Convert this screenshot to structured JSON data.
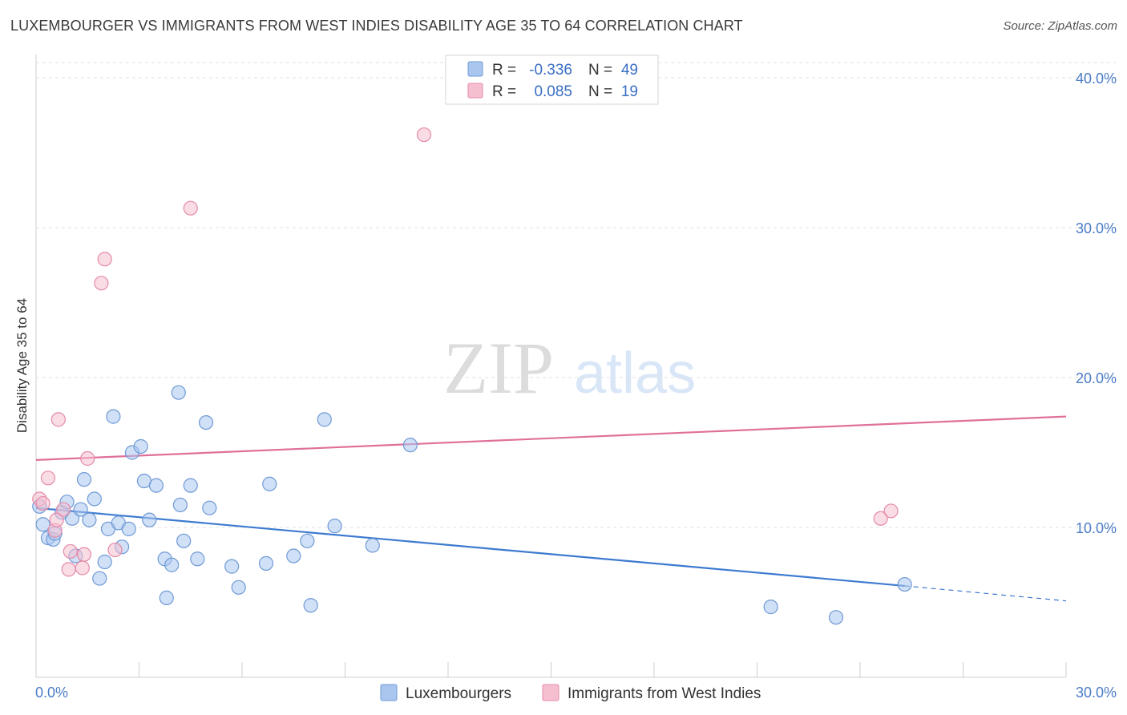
{
  "chart_data": {
    "type": "scatter",
    "title": "LUXEMBOURGER VS IMMIGRANTS FROM WEST INDIES DISABILITY AGE 35 TO 64 CORRELATION CHART",
    "source": "Source: ZipAtlas.com",
    "xlabel": "",
    "ylabel": "Disability Age 35 to 64",
    "xlim": [
      0,
      30
    ],
    "ylim": [
      0,
      40
    ],
    "x_tick_labels": [
      "0.0%",
      "30.0%"
    ],
    "y_ticks": [
      {
        "value": 10,
        "label": "10.0%"
      },
      {
        "value": 20,
        "label": "20.0%"
      },
      {
        "value": 30,
        "label": "30.0%"
      },
      {
        "value": 40,
        "label": "40.0%"
      }
    ],
    "watermark": "ZIPatlas",
    "legend": {
      "r_label": "R =",
      "n_label": "N =",
      "entries": [
        {
          "r": "-0.336",
          "n": "49"
        },
        {
          "r": "0.085",
          "n": "19"
        }
      ]
    },
    "colors": {
      "blue_fill": "#aac6ee",
      "blue_stroke": "#6f9ad6",
      "blue_line": "#3d7ad0",
      "pink_fill": "#f6bfd0",
      "pink_stroke": "#e48aa8",
      "pink_line": "#e0709a"
    },
    "series": [
      {
        "name": "Luxembourgers",
        "color": "blue",
        "trend": {
          "x0": 0.0,
          "y0": 11.3,
          "x1": 25.3,
          "y1": 6.1,
          "dash_to_x": 30,
          "dash_to_y": 5.1
        },
        "points": [
          [
            0.1,
            11.4
          ],
          [
            0.2,
            10.2
          ],
          [
            0.35,
            9.3
          ],
          [
            0.5,
            9.2
          ],
          [
            0.55,
            9.6
          ],
          [
            0.75,
            11.0
          ],
          [
            0.9,
            11.7
          ],
          [
            1.05,
            10.6
          ],
          [
            1.15,
            8.1
          ],
          [
            1.3,
            11.2
          ],
          [
            1.4,
            13.2
          ],
          [
            1.55,
            10.5
          ],
          [
            1.7,
            11.9
          ],
          [
            1.85,
            6.6
          ],
          [
            2.0,
            7.7
          ],
          [
            2.1,
            9.9
          ],
          [
            2.25,
            17.4
          ],
          [
            2.4,
            10.3
          ],
          [
            2.5,
            8.7
          ],
          [
            2.7,
            9.9
          ],
          [
            2.8,
            15.0
          ],
          [
            3.05,
            15.4
          ],
          [
            3.15,
            13.1
          ],
          [
            3.3,
            10.5
          ],
          [
            3.5,
            12.8
          ],
          [
            3.75,
            7.9
          ],
          [
            3.8,
            5.3
          ],
          [
            3.95,
            7.5
          ],
          [
            4.15,
            19.0
          ],
          [
            4.2,
            11.5
          ],
          [
            4.3,
            9.1
          ],
          [
            4.5,
            12.8
          ],
          [
            4.7,
            7.9
          ],
          [
            4.95,
            17.0
          ],
          [
            5.05,
            11.3
          ],
          [
            5.7,
            7.4
          ],
          [
            5.9,
            6.0
          ],
          [
            6.7,
            7.6
          ],
          [
            6.8,
            12.9
          ],
          [
            7.5,
            8.1
          ],
          [
            7.9,
            9.1
          ],
          [
            8.0,
            4.8
          ],
          [
            8.4,
            17.2
          ],
          [
            8.7,
            10.1
          ],
          [
            9.8,
            8.8
          ],
          [
            10.9,
            15.5
          ],
          [
            21.4,
            4.7
          ],
          [
            23.3,
            4.0
          ],
          [
            25.3,
            6.2
          ]
        ]
      },
      {
        "name": "Immigrants from West Indies",
        "color": "pink",
        "trend": {
          "x0": 0.0,
          "y0": 14.5,
          "x1": 30.0,
          "y1": 17.4
        },
        "points": [
          [
            0.1,
            11.9
          ],
          [
            0.2,
            11.6
          ],
          [
            0.35,
            13.3
          ],
          [
            0.55,
            9.8
          ],
          [
            0.6,
            10.5
          ],
          [
            0.65,
            17.2
          ],
          [
            0.8,
            11.2
          ],
          [
            0.95,
            7.2
          ],
          [
            1.0,
            8.4
          ],
          [
            1.35,
            7.3
          ],
          [
            1.4,
            8.2
          ],
          [
            1.5,
            14.6
          ],
          [
            1.9,
            26.3
          ],
          [
            2.0,
            27.9
          ],
          [
            2.3,
            8.5
          ],
          [
            4.5,
            31.3
          ],
          [
            11.3,
            36.2
          ],
          [
            24.6,
            10.6
          ],
          [
            24.9,
            11.1
          ]
        ]
      }
    ]
  }
}
